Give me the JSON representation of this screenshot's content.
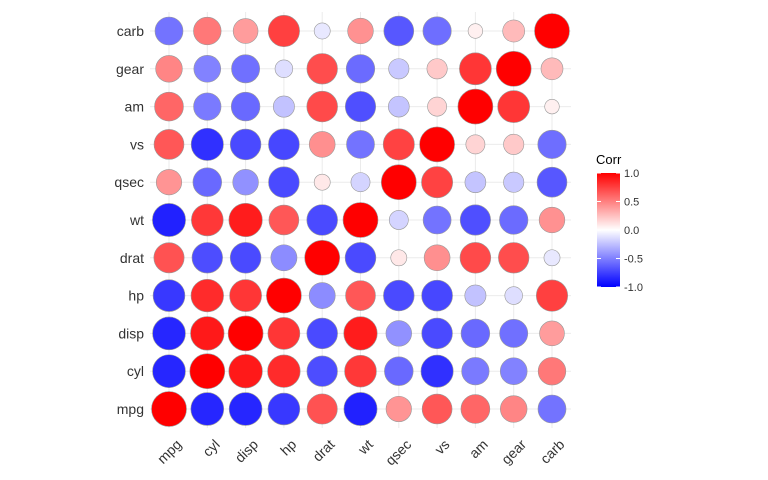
{
  "chart_data": {
    "type": "heatmap",
    "method": "circle",
    "variables": [
      "mpg",
      "cyl",
      "disp",
      "hp",
      "drat",
      "wt",
      "qsec",
      "vs",
      "am",
      "gear",
      "carb"
    ],
    "matrix": [
      [
        1.0,
        -0.85,
        -0.85,
        -0.78,
        0.68,
        -0.87,
        0.42,
        0.66,
        0.6,
        0.48,
        -0.55
      ],
      [
        -0.85,
        1.0,
        0.9,
        0.83,
        -0.7,
        0.78,
        -0.59,
        -0.81,
        -0.52,
        -0.49,
        0.53
      ],
      [
        -0.85,
        0.9,
        1.0,
        0.79,
        -0.71,
        0.89,
        -0.43,
        -0.71,
        -0.59,
        -0.56,
        0.39
      ],
      [
        -0.78,
        0.83,
        0.79,
        1.0,
        -0.45,
        0.66,
        -0.71,
        -0.72,
        -0.24,
        -0.13,
        0.75
      ],
      [
        0.68,
        -0.7,
        -0.71,
        -0.45,
        1.0,
        -0.71,
        0.09,
        0.44,
        0.71,
        0.7,
        -0.09
      ],
      [
        -0.87,
        0.78,
        0.89,
        0.66,
        -0.71,
        1.0,
        -0.17,
        -0.55,
        -0.69,
        -0.58,
        0.43
      ],
      [
        0.42,
        -0.59,
        -0.43,
        -0.71,
        0.09,
        -0.17,
        1.0,
        0.74,
        -0.23,
        -0.21,
        -0.66
      ],
      [
        0.66,
        -0.81,
        -0.71,
        -0.72,
        0.44,
        -0.55,
        0.74,
        1.0,
        0.17,
        0.21,
        -0.57
      ],
      [
        0.6,
        -0.52,
        -0.59,
        -0.24,
        0.71,
        -0.69,
        -0.23,
        0.17,
        1.0,
        0.79,
        0.06
      ],
      [
        0.48,
        -0.49,
        -0.56,
        -0.13,
        0.7,
        -0.58,
        -0.21,
        0.21,
        0.79,
        1.0,
        0.27
      ],
      [
        -0.55,
        0.53,
        0.39,
        0.75,
        -0.09,
        0.43,
        -0.66,
        -0.57,
        0.06,
        0.27,
        1.0
      ]
    ],
    "legend": {
      "title": "Corr",
      "ticks": [
        "1.0",
        "0.5",
        "0.0",
        "-0.5",
        "-1.0"
      ],
      "tick_values": [
        1,
        0.5,
        0,
        -0.5,
        -1
      ],
      "placement": "right"
    },
    "colors": {
      "low": "#0000FF",
      "mid": "#FFFFFF",
      "high": "#FF0000",
      "outline": "#999999",
      "grid": "#EBEBEB"
    },
    "limits": [
      -1,
      1
    ],
    "grid": true
  }
}
